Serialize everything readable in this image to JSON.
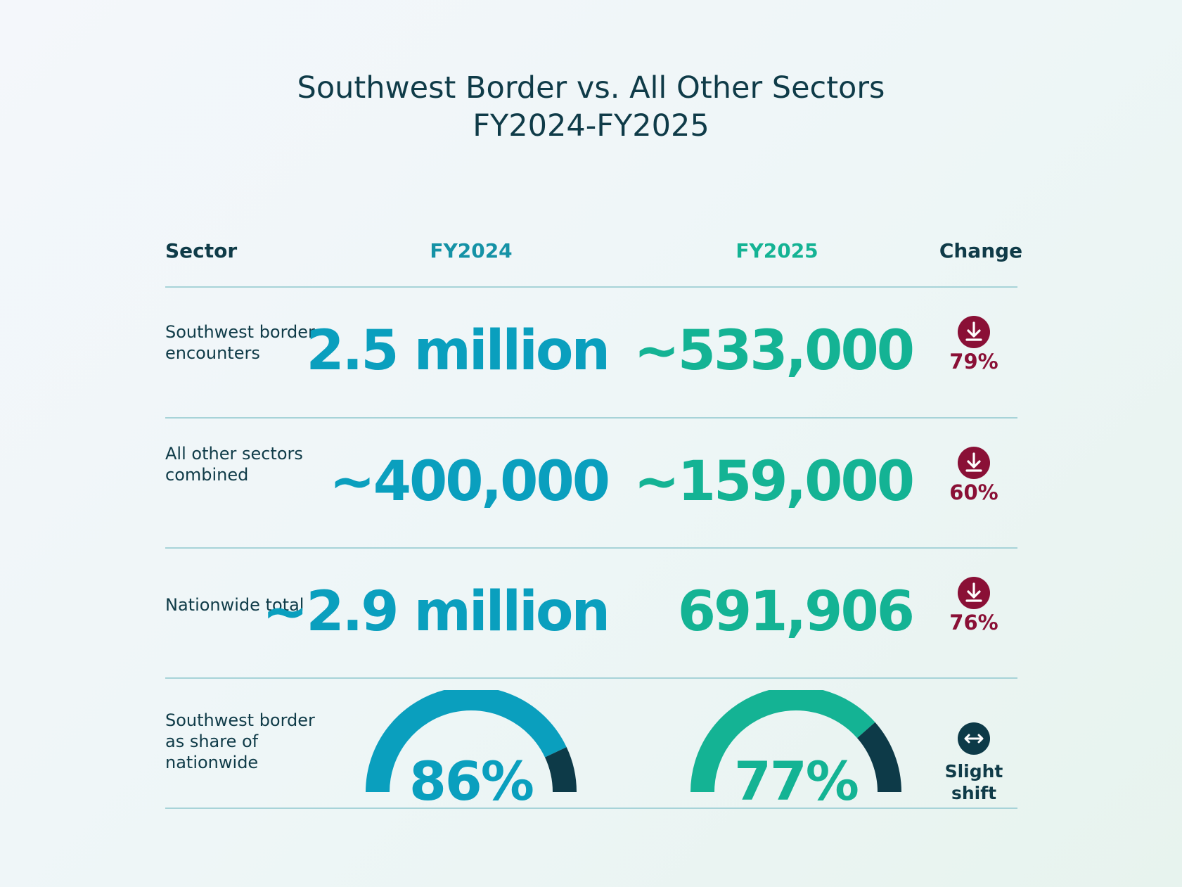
{
  "title": {
    "line1": "Southwest Border vs. All Other Sectors",
    "line2": "FY2024-FY2025"
  },
  "headers": {
    "sector": "Sector",
    "fy2024": "FY2024",
    "fy2025": "FY2025",
    "change": "Change"
  },
  "rows": [
    {
      "label": "Southwest border encounters",
      "fy2024": "2.5 million",
      "fy2025": "~533,000",
      "change": "79%",
      "change_icon": "arrow-down-icon"
    },
    {
      "label": "All other sectors combined",
      "fy2024": "~400,000",
      "fy2025": "~159,000",
      "change": "60%",
      "change_icon": "arrow-down-icon"
    },
    {
      "label": "Nationwide total",
      "fy2024": "~2.9 million",
      "fy2025": "691,906",
      "change": "76%",
      "change_icon": "arrow-down-icon"
    }
  ],
  "share_row": {
    "label": "Southwest border as share of nationwide",
    "fy2024": {
      "value": "86%",
      "fraction": 0.86
    },
    "fy2025": {
      "value": "77%",
      "fraction": 0.77
    },
    "change": "Slight shift",
    "change_icon": "horizontal-arrows-icon"
  },
  "colors": {
    "fy2024": "#0a9fbe",
    "fy2025": "#14b394",
    "remainder": "#0d3a48",
    "decrease": "#8a1036",
    "text": "#0f3b48"
  }
}
